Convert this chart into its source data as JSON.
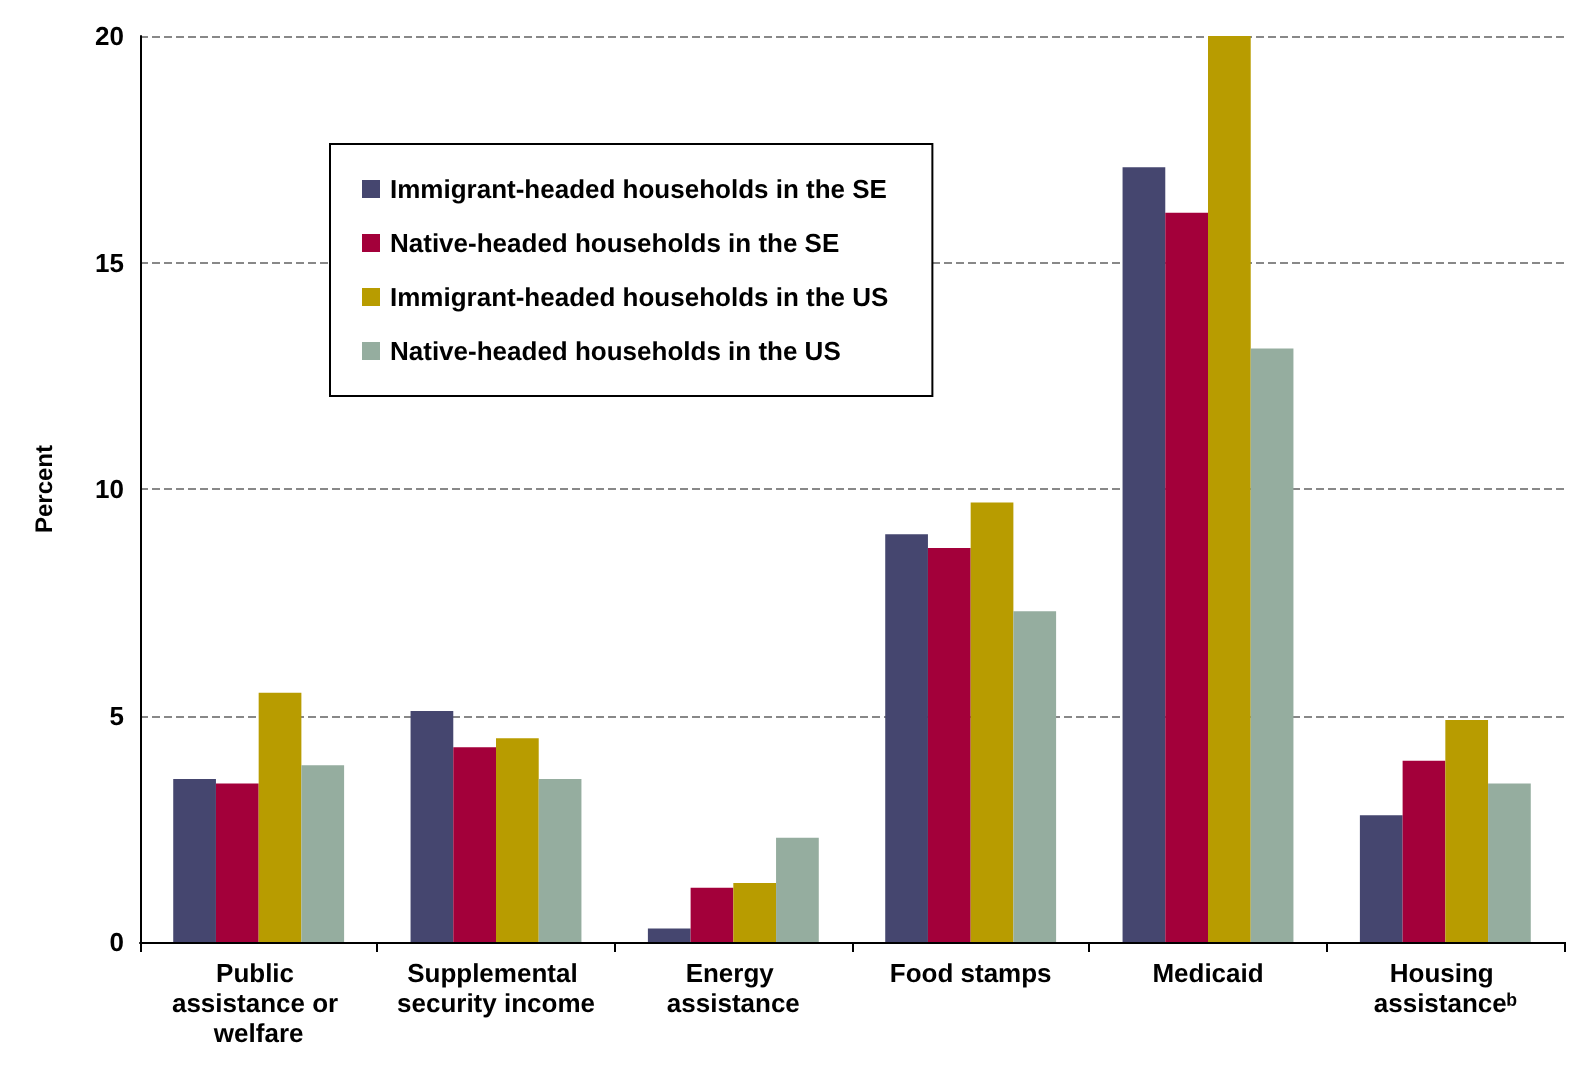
{
  "chart_data": {
    "type": "bar",
    "ylabel": "Percent",
    "categories": [
      "Public assistance or welfare",
      "Supplemental security income",
      "Energy assistance",
      "Food stamps",
      "Medicaid",
      "Housing assistanceᵇ"
    ],
    "series": [
      {
        "name": "Immigrant-headed households in the SE",
        "color": "#45466f",
        "values": [
          3.6,
          5.1,
          0.3,
          9.0,
          17.1,
          2.8
        ]
      },
      {
        "name": "Native-headed households in the SE",
        "color": "#a3003a",
        "values": [
          3.5,
          4.3,
          1.2,
          8.7,
          16.1,
          4.0
        ]
      },
      {
        "name": "Immigrant-headed households in the US",
        "color": "#b89c00",
        "values": [
          5.5,
          4.5,
          1.3,
          9.7,
          20.0,
          4.9
        ]
      },
      {
        "name": "Native-headed households in the US",
        "color": "#95ad9f",
        "values": [
          3.9,
          3.6,
          2.3,
          7.3,
          13.1,
          3.5
        ]
      }
    ],
    "ylim": [
      0,
      20
    ],
    "yticks": [
      0,
      5,
      10,
      15,
      20
    ],
    "grid": "y",
    "legend": "top"
  }
}
